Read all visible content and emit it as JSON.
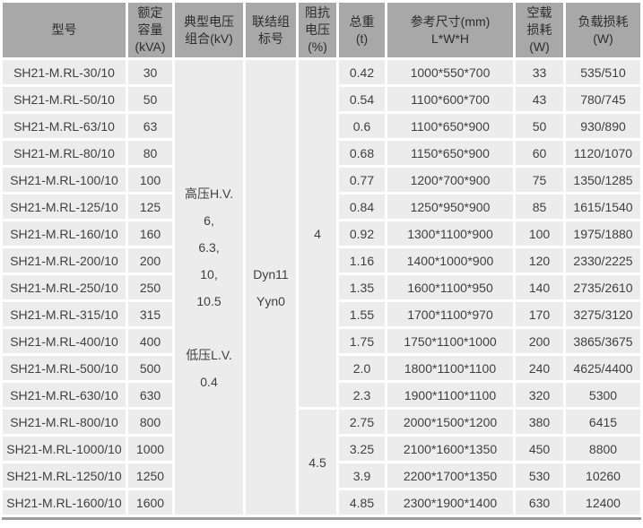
{
  "colors": {
    "header_bg": "#a8a8a8",
    "header_text": "#2d2d2d",
    "cell_bg": "#ececec",
    "cell_text": "#3f3f3f",
    "page_bg": "#ffffff",
    "bottom_line": "#9c9c9c"
  },
  "table": {
    "headers": [
      {
        "id": "model",
        "lines": [
          "型号"
        ]
      },
      {
        "id": "capacity",
        "lines": [
          "额定",
          "容量",
          "(kVA)"
        ]
      },
      {
        "id": "voltage-combination",
        "lines": [
          "典型电压",
          "组合(kV)"
        ]
      },
      {
        "id": "vector-group",
        "lines": [
          "联结组",
          "标号"
        ]
      },
      {
        "id": "impedance-voltage",
        "lines": [
          "阻抗",
          "电压",
          "(%)"
        ]
      },
      {
        "id": "total-weight",
        "lines": [
          "总重",
          "(t)"
        ]
      },
      {
        "id": "dimensions",
        "lines": [
          "参考尺寸(mm)",
          "L*W*H"
        ]
      },
      {
        "id": "no-load-loss",
        "lines": [
          "空载",
          "损耗",
          "(W)"
        ]
      },
      {
        "id": "load-loss",
        "lines": [
          "负载损耗",
          "(W)"
        ]
      }
    ],
    "merged": {
      "voltage_combination_lines": [
        "高压H.V.",
        "6,",
        "6.3,",
        "10,",
        "10.5",
        "",
        "低压L.V.",
        "0.4"
      ],
      "vector_group_lines": [
        "Dyn11",
        "Yyn0"
      ],
      "impedance_groups": [
        {
          "value": "4",
          "row_span": 13
        },
        {
          "value": "4.5",
          "row_span": 4
        }
      ]
    },
    "rows": [
      {
        "model": "SH21-M.RL-30/10",
        "capacity": "30",
        "weight": "0.42",
        "dimensions": "1000*550*700",
        "no_load_loss": "33",
        "load_loss": "535/510"
      },
      {
        "model": "SH21-M.RL-50/10",
        "capacity": "50",
        "weight": "0.54",
        "dimensions": "1100*600*700",
        "no_load_loss": "43",
        "load_loss": "780/745"
      },
      {
        "model": "SH21-M.RL-63/10",
        "capacity": "63",
        "weight": "0.6",
        "dimensions": "1100*650*900",
        "no_load_loss": "50",
        "load_loss": "930/890"
      },
      {
        "model": "SH21-M.RL-80/10",
        "capacity": "80",
        "weight": "0.68",
        "dimensions": "1150*650*900",
        "no_load_loss": "60",
        "load_loss": "1120/1070"
      },
      {
        "model": "SH21-M.RL-100/10",
        "capacity": "100",
        "weight": "0.77",
        "dimensions": "1200*700*900",
        "no_load_loss": "75",
        "load_loss": "1350/1285"
      },
      {
        "model": "SH21-M.RL-125/10",
        "capacity": "125",
        "weight": "0.84",
        "dimensions": "1250*950*900",
        "no_load_loss": "85",
        "load_loss": "1615/1540"
      },
      {
        "model": "SH21-M.RL-160/10",
        "capacity": "160",
        "weight": "0.92",
        "dimensions": "1300*1100*900",
        "no_load_loss": "100",
        "load_loss": "1975/1880"
      },
      {
        "model": "SH21-M.RL-200/10",
        "capacity": "200",
        "weight": "1.16",
        "dimensions": "1400*1000*900",
        "no_load_loss": "120",
        "load_loss": "2330/2225"
      },
      {
        "model": "SH21-M.RL-250/10",
        "capacity": "250",
        "weight": "1.35",
        "dimensions": "1600*1100*950",
        "no_load_loss": "140",
        "load_loss": "2735/2610"
      },
      {
        "model": "SH21-M.RL-315/10",
        "capacity": "315",
        "weight": "1.55",
        "dimensions": "1700*1100*970",
        "no_load_loss": "170",
        "load_loss": "3275/3120"
      },
      {
        "model": "SH21-M.RL-400/10",
        "capacity": "400",
        "weight": "1.75",
        "dimensions": "1750*1100*1000",
        "no_load_loss": "200",
        "load_loss": "3865/3675"
      },
      {
        "model": "SH21-M.RL-500/10",
        "capacity": "500",
        "weight": "2.0",
        "dimensions": "1800*1100*1100",
        "no_load_loss": "240",
        "load_loss": "4625/4400"
      },
      {
        "model": "SH21-M.RL-630/10",
        "capacity": "630",
        "weight": "2.3",
        "dimensions": "1900*1100*1100",
        "no_load_loss": "320",
        "load_loss": "5300"
      },
      {
        "model": "SH21-M.RL-800/10",
        "capacity": "800",
        "weight": "2.75",
        "dimensions": "2000*1500*1200",
        "no_load_loss": "380",
        "load_loss": "6415"
      },
      {
        "model": "SH21-M.RL-1000/10",
        "capacity": "1000",
        "weight": "3.25",
        "dimensions": "2100*1600*1350",
        "no_load_loss": "450",
        "load_loss": "8800"
      },
      {
        "model": "SH21-M.RL-1250/10",
        "capacity": "1250",
        "weight": "3.9",
        "dimensions": "2200*1700*1350",
        "no_load_loss": "530",
        "load_loss": "10260"
      },
      {
        "model": "SH21-M.RL-1600/10",
        "capacity": "1600",
        "weight": "4.85",
        "dimensions": "2300*1900*1400",
        "no_load_loss": "630",
        "load_loss": "12400"
      }
    ]
  }
}
